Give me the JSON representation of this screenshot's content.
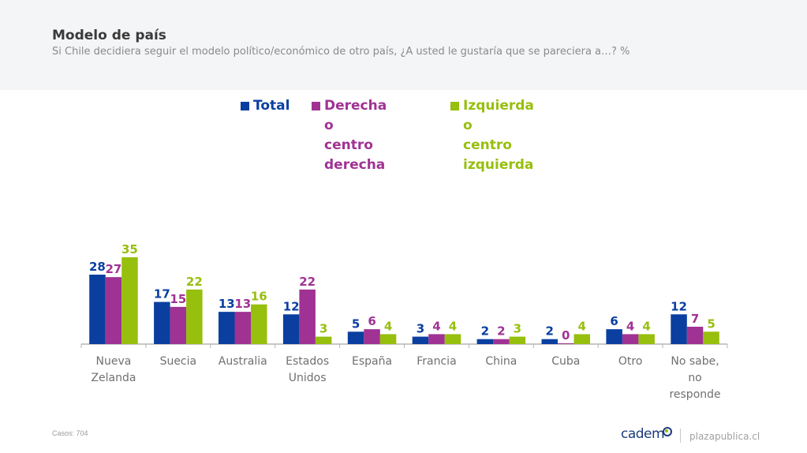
{
  "header": {
    "title": "Modelo de país",
    "subtitle": "Si Chile decidiera seguir el modelo político/económico de otro país, ¿A usted le gustaría que se pareciera a…? %"
  },
  "footer": {
    "cases": "Casos: 704",
    "brand": "cadem",
    "site": "plazapublica.cl"
  },
  "chart_data": {
    "type": "bar",
    "title": "Modelo de país",
    "xlabel": "",
    "ylabel": "%",
    "ylim": [
      0,
      35
    ],
    "grid": false,
    "legend_position": "top-center",
    "categories": [
      "Nueva\nZelanda",
      "Suecia",
      "Australia",
      "Estados\nUnidos",
      "España",
      "Francia",
      "China",
      "Cuba",
      "Otro",
      "No sabe,\nno\nresponde"
    ],
    "series": [
      {
        "name": "Total",
        "color": "#0a3fa0",
        "values": [
          28,
          17,
          13,
          12,
          5,
          3,
          2,
          2,
          6,
          12
        ]
      },
      {
        "name": "Derecha o\ncentro derecha",
        "color": "#a03294",
        "values": [
          27,
          15,
          13,
          22,
          6,
          4,
          2,
          0,
          4,
          7
        ]
      },
      {
        "name": "Izquierda o\ncentro izquierda",
        "color": "#97bf0d",
        "values": [
          35,
          22,
          16,
          3,
          4,
          4,
          3,
          4,
          4,
          5
        ]
      }
    ]
  }
}
